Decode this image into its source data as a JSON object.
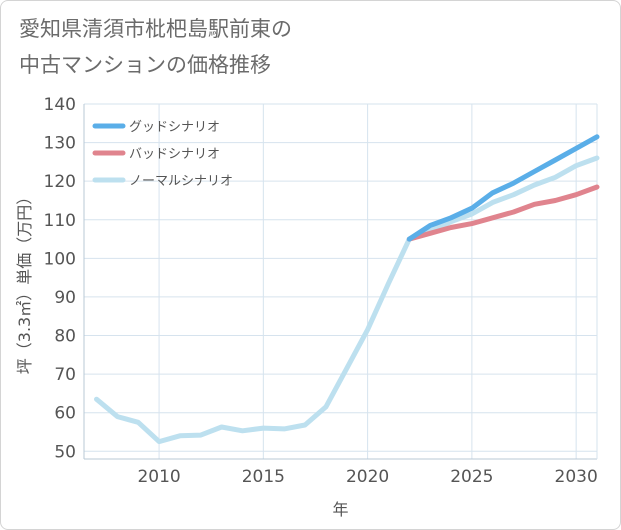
{
  "title_lines": [
    "愛知県清須市枇杷島駅前東の",
    "中古マンションの価格推移"
  ],
  "chart_data": {
    "type": "line",
    "title": "愛知県清須市枇杷島駅前東の中古マンションの価格推移",
    "xlabel": "年",
    "ylabel": "坪（3.3㎡）単価（万円）",
    "xlim": [
      2006.4,
      2031
    ],
    "ylim": [
      48,
      140
    ],
    "x_ticks": [
      2010,
      2015,
      2020,
      2025,
      2030
    ],
    "y_ticks": [
      50,
      60,
      70,
      80,
      90,
      100,
      110,
      120,
      130,
      140
    ],
    "grid": true,
    "legend_position": "top-left",
    "series": [
      {
        "name": "グッドシナリオ",
        "color": "#5aaee8",
        "x": [
          2022,
          2023,
          2024,
          2025,
          2026,
          2027,
          2028,
          2029,
          2030,
          2031
        ],
        "y": [
          105,
          108.5,
          110.5,
          113,
          117,
          119.5,
          122.5,
          125.5,
          128.5,
          131.5
        ]
      },
      {
        "name": "バッドシナリオ",
        "color": "#e0848e",
        "x": [
          2022,
          2023,
          2024,
          2025,
          2026,
          2027,
          2028,
          2029,
          2030,
          2031
        ],
        "y": [
          105,
          106.5,
          108,
          109,
          110.5,
          112,
          114,
          115,
          116.5,
          118.5
        ]
      },
      {
        "name": "ノーマルシナリオ",
        "color": "#bde0ef",
        "x": [
          2007,
          2008,
          2009,
          2010,
          2011,
          2012,
          2013,
          2014,
          2015,
          2016,
          2017,
          2018,
          2019,
          2020,
          2021,
          2022,
          2023,
          2024,
          2025,
          2026,
          2027,
          2028,
          2029,
          2030,
          2031
        ],
        "y": [
          63.5,
          59,
          57.5,
          52.5,
          54,
          54.2,
          56.3,
          55.3,
          56,
          55.8,
          56.8,
          61.5,
          71.5,
          81.5,
          93.5,
          105,
          107,
          109.5,
          111.5,
          114.5,
          116.5,
          119,
          121,
          124,
          126
        ]
      }
    ]
  }
}
